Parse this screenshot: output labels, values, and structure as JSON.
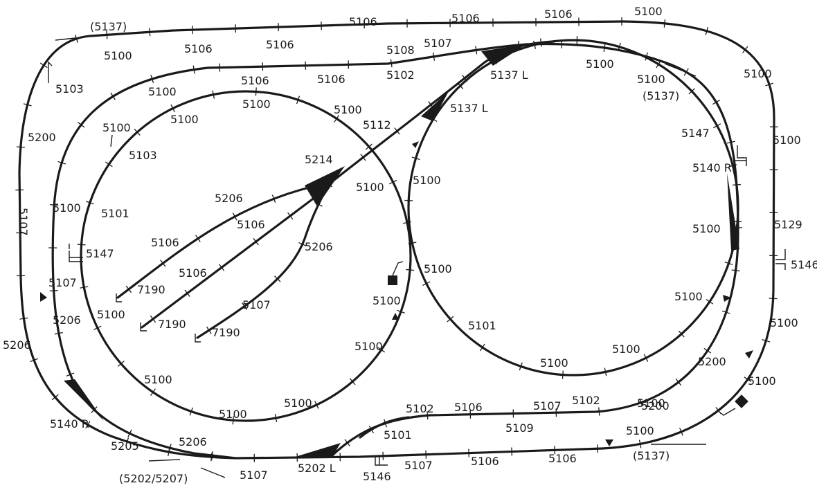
{
  "diagram": {
    "labels": [
      "(5137)",
      "5100",
      "5103",
      "5200",
      "5107",
      "5206",
      "5140 R",
      "5205",
      "(5202/5207)",
      "5206",
      "5107",
      "5202 L",
      "5146",
      "5107",
      "5106",
      "5106",
      "(5137)",
      "5100",
      "5100",
      "5200",
      "5100",
      "5100",
      "5146",
      "5129",
      "5100",
      "5100",
      "5100",
      "(5137)",
      "5100",
      "5106",
      "5106",
      "5106",
      "5100",
      "5106",
      "5106",
      "5106",
      "5108",
      "5107",
      "5102",
      "5137 L",
      "5100",
      "5137 L",
      "5112",
      "5100",
      "5103",
      "5100",
      "5100",
      "5101",
      "5100",
      "5147",
      "5107",
      "5206",
      "5100",
      "5100",
      "5100",
      "5106",
      "5100",
      "5214",
      "5206",
      "5106",
      "5106",
      "5106",
      "5206",
      "7190",
      "7190",
      "7190",
      "5107",
      "5100",
      "5100",
      "5100",
      "5100",
      "5100",
      "5100",
      "5101",
      "5147",
      "5140 R",
      "5100",
      "5100",
      "5100",
      "5100",
      "5102",
      "5106",
      "5107",
      "5102",
      "5109",
      "5200",
      "5101"
    ],
    "switches": [
      "5137 L",
      "5137 L",
      "5214",
      "5140 R",
      "5140 R",
      "5202 L"
    ],
    "buffers": [
      "7190",
      "7190",
      "7190"
    ]
  }
}
